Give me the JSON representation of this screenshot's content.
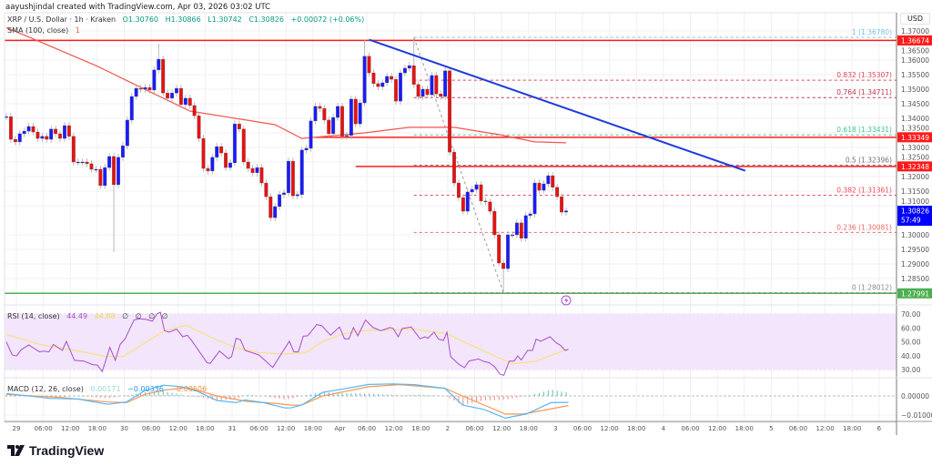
{
  "header": {
    "credit": "aayushjindal created with TradingView.com, Apr 03, 2026 03:02 UTC"
  },
  "legend": {
    "symbol": "XRP / U.S. Dollar · 1h · Kraken",
    "open": "O1.30760",
    "high": "H1.30866",
    "low": "L1.30742",
    "close": "C1.30826",
    "change": "+0.00072 (+0.06%)",
    "sma_label": "SMA (100, close)",
    "sma_value": "1"
  },
  "rsi_legend": {
    "label": "RSI (14, close)",
    "rsi": "44.49",
    "ma": "44.88",
    "extra": [
      "∅",
      "∅",
      "∅",
      "∅"
    ]
  },
  "macd_legend": {
    "label": "MACD (12, 26, close)",
    "hist": "0.00171",
    "macd": "−0.00336",
    "signal": "−0.00506"
  },
  "axis": {
    "currency_button": "USD",
    "price_ticks": [
      "1.37000",
      "1.36500",
      "1.36000",
      "1.35500",
      "1.35000",
      "1.34500",
      "1.34000",
      "1.33500",
      "1.33000",
      "1.32500",
      "1.32000",
      "1.31500",
      "1.31000",
      "1.30000",
      "1.29500",
      "1.29000",
      "1.28500"
    ],
    "rsi_ticks": [
      "70.00",
      "60.00",
      "50.00",
      "40.00",
      "30.00"
    ],
    "macd_ticks": [
      "0.00000",
      "−0.01000"
    ],
    "time_ticks": [
      "29",
      "06:00",
      "12:00",
      "18:00",
      "30",
      "06:00",
      "12:00",
      "18:00",
      "31",
      "06:00",
      "12:00",
      "18:00",
      "Apr",
      "06:00",
      "12:00",
      "18:00",
      "2",
      "06:00",
      "12:00",
      "18:00",
      "3",
      "06:00",
      "12:00",
      "18:00",
      "4",
      "06:00",
      "12:00",
      "18:00",
      "5",
      "06:00",
      "12:00",
      "18:00",
      "6"
    ]
  },
  "price_tags": [
    {
      "text": "1.36674",
      "price": 1.36674,
      "color": "#ff1a1a"
    },
    {
      "text": "1.33349",
      "price": 1.33349,
      "color": "#ff1a1a"
    },
    {
      "text": "1.32348",
      "price": 1.32348,
      "color": "#ff1a1a"
    },
    {
      "text": "1.30826",
      "sub": "57:49",
      "price": 1.30826,
      "color": "#0000ff"
    },
    {
      "text": "1.27991",
      "price": 1.27991,
      "color": "#4caf50"
    }
  ],
  "brand": {
    "name": "TradingView"
  },
  "colors": {
    "up": "#1a1aff",
    "down": "#e81111",
    "sma": "#f2564d",
    "trendline": "#1f3bd8",
    "rsi": "#a64fc8",
    "rsi_ma": "#f7df6b",
    "rsi_band": "#f3e5fc",
    "macd": "#55b8f5",
    "signal": "#fb9852",
    "hist_up": "#26a69a",
    "hist_down": "#ef5350"
  },
  "chart_data": {
    "type": "candlestick",
    "symbol": "XRP/USD",
    "interval": "1h",
    "ylim": [
      1.2775,
      1.372
    ],
    "grid": true,
    "first_open": 1.3406,
    "closes": [
      1.3406,
      1.3328,
      1.3319,
      1.3347,
      1.3356,
      1.3372,
      1.3353,
      1.3331,
      1.3338,
      1.3328,
      1.3363,
      1.3347,
      1.3331,
      1.3375,
      1.3338,
      1.325,
      1.325,
      1.325,
      1.3244,
      1.3225,
      1.3225,
      1.3169,
      1.3231,
      1.3269,
      1.3172,
      1.3266,
      1.3306,
      1.3394,
      1.3475,
      1.3503,
      1.35,
      1.3506,
      1.3497,
      1.3566,
      1.3603,
      1.3487,
      1.3469,
      1.3487,
      1.3503,
      1.3447,
      1.3469,
      1.3444,
      1.3409,
      1.3331,
      1.3228,
      1.3219,
      1.3266,
      1.3303,
      1.3281,
      1.3231,
      1.3247,
      1.3381,
      1.3363,
      1.325,
      1.3228,
      1.3213,
      1.3231,
      1.3178,
      1.3131,
      1.3059,
      1.3097,
      1.3138,
      1.3144,
      1.3253,
      1.3134,
      1.3138,
      1.3291,
      1.3297,
      1.3391,
      1.3441,
      1.3434,
      1.3394,
      1.3347,
      1.3403,
      1.3441,
      1.3338,
      1.3341,
      1.3466,
      1.3381,
      1.3453,
      1.3613,
      1.3556,
      1.3519,
      1.3509,
      1.3522,
      1.3544,
      1.3534,
      1.3459,
      1.3556,
      1.3572,
      1.3581,
      1.3516,
      1.3475,
      1.35,
      1.3481,
      1.3547,
      1.3484,
      1.3475,
      1.3563,
      1.3284,
      1.3178,
      1.3128,
      1.3081,
      1.3147,
      1.3156,
      1.3172,
      1.3116,
      1.3113,
      1.3081,
      1.3,
      1.2903,
      1.2884,
      1.3,
      1.3,
      1.3041,
      1.2988,
      1.3066,
      1.3072,
      1.3178,
      1.3153,
      1.3175,
      1.3203,
      1.3163,
      1.3131,
      1.3078,
      1.30826
    ],
    "wick_extremes": [
      {
        "index": 24,
        "low": 1.2941
      },
      {
        "index": 34,
        "high": 1.3656
      },
      {
        "index": 80,
        "high": 1.3669
      },
      {
        "index": 91,
        "high": 1.3678
      },
      {
        "index": 111,
        "low": 1.28012
      }
    ],
    "sma100": [
      [
        0,
        1.3712
      ],
      [
        20,
        1.3581
      ],
      [
        41,
        1.3425
      ],
      [
        60,
        1.3378
      ],
      [
        66,
        1.3331
      ],
      [
        80,
        1.335
      ],
      [
        90,
        1.3369
      ],
      [
        100,
        1.3369
      ],
      [
        110,
        1.3344
      ],
      [
        118,
        1.3319
      ],
      [
        125,
        1.3316
      ]
    ],
    "horizontal_levels": [
      {
        "price": 1.36674,
        "color": "#ff1a1a",
        "from_index": -1
      },
      {
        "price": 1.33349,
        "color": "#ff1a1a",
        "from_index": 69
      },
      {
        "price": 1.32348,
        "color": "#ff1a1a",
        "from_index": 78
      },
      {
        "price": 1.27991,
        "color": "#4caf50",
        "from_index": -1
      }
    ],
    "trendline": {
      "from": [
        81,
        1.367
      ],
      "to": [
        165,
        1.322
      ]
    },
    "fibonacci": {
      "from_index": 91,
      "to_index": 111,
      "levels": [
        {
          "ratio": "1",
          "price": 1.3678,
          "label": "1 (1.36780)",
          "color": "#7ec3e6"
        },
        {
          "ratio": "0.832",
          "price": 1.35307,
          "label": "0.832 (1.35307)",
          "color": "#e0455d"
        },
        {
          "ratio": "0.764",
          "price": 1.34711,
          "label": "0.764 (1.34711)",
          "color": "#c2364d"
        },
        {
          "ratio": "0.618",
          "price": 1.33431,
          "label": "0.618 (1.33431)",
          "color": "#3dc98f"
        },
        {
          "ratio": "0.5",
          "price": 1.32396,
          "label": "0.5 (1.32396)",
          "color": "#7d6b7d"
        },
        {
          "ratio": "0.382",
          "price": 1.31361,
          "label": "0.382 (1.31361)",
          "color": "#ef4b5f"
        },
        {
          "ratio": "0.236",
          "price": 1.30081,
          "label": "0.236 (1.30081)",
          "color": "#e66a6a"
        },
        {
          "ratio": "0",
          "price": 1.28012,
          "label": "0 (1.28012)",
          "color": "#8a8a8a"
        }
      ]
    },
    "rsi": {
      "ylim": [
        30,
        70
      ],
      "values": [
        [
          0,
          49.9
        ],
        [
          1.3,
          40.5
        ],
        [
          2.3,
          39.8
        ],
        [
          3.3,
          44.2
        ],
        [
          5,
          47.7
        ],
        [
          7.4,
          42.7
        ],
        [
          8.4,
          43.3
        ],
        [
          9.5,
          42.7
        ],
        [
          10.5,
          48.1
        ],
        [
          12.5,
          43.8
        ],
        [
          13.4,
          50.3
        ],
        [
          15.2,
          36.6
        ],
        [
          17.3,
          36.1
        ],
        [
          19.3,
          33.5
        ],
        [
          20.3,
          33.3
        ],
        [
          21.4,
          28.5
        ],
        [
          23.1,
          46
        ],
        [
          24.3,
          36.6
        ],
        [
          25.4,
          48.1
        ],
        [
          26.5,
          52.1
        ],
        [
          28.5,
          65.6
        ],
        [
          29.5,
          66.5
        ],
        [
          31.2,
          66.1
        ],
        [
          32.6,
          64.8
        ],
        [
          33.6,
          70
        ],
        [
          34.4,
          71.3
        ],
        [
          35.3,
          58
        ],
        [
          36.3,
          56.9
        ],
        [
          38,
          59.1
        ],
        [
          39.4,
          53.6
        ],
        [
          40.4,
          54.7
        ],
        [
          41.4,
          50.8
        ],
        [
          44.8,
          35
        ],
        [
          45.5,
          34.4
        ],
        [
          47.6,
          43.3
        ],
        [
          49.6,
          37.9
        ],
        [
          50.3,
          39.4
        ],
        [
          51.3,
          52.5
        ],
        [
          52.3,
          51.4
        ],
        [
          53.3,
          43.8
        ],
        [
          56.4,
          40.5
        ],
        [
          59.5,
          31.5
        ],
        [
          61.1,
          39.8
        ],
        [
          63.2,
          50.3
        ],
        [
          64.2,
          42.7
        ],
        [
          65.2,
          42.7
        ],
        [
          66.3,
          54
        ],
        [
          67.3,
          54.3
        ],
        [
          69.3,
          62.4
        ],
        [
          70.4,
          61.7
        ],
        [
          72.4,
          54.7
        ],
        [
          74.4,
          60.6
        ],
        [
          75.5,
          52.1
        ],
        [
          76.5,
          52.1
        ],
        [
          77.5,
          60.2
        ],
        [
          78.5,
          54.3
        ],
        [
          80.2,
          65.6
        ],
        [
          81.9,
          60.2
        ],
        [
          83.6,
          58
        ],
        [
          85.7,
          60.2
        ],
        [
          86.4,
          59.5
        ],
        [
          87.5,
          53.6
        ],
        [
          88.4,
          59.5
        ],
        [
          90.4,
          60.6
        ],
        [
          92.4,
          52.1
        ],
        [
          93.5,
          53.6
        ],
        [
          94.1,
          52.5
        ],
        [
          95.5,
          56.9
        ],
        [
          96.5,
          51.9
        ],
        [
          97.6,
          51
        ],
        [
          98.4,
          56.9
        ],
        [
          99.2,
          39.4
        ],
        [
          101,
          33.9
        ],
        [
          102.3,
          31.3
        ],
        [
          103.3,
          36.1
        ],
        [
          105.4,
          37.6
        ],
        [
          106.7,
          35.7
        ],
        [
          107.8,
          35
        ],
        [
          109.1,
          31.7
        ],
        [
          110.2,
          26.7
        ],
        [
          111.1,
          25.8
        ],
        [
          112.3,
          36.1
        ],
        [
          113.4,
          36.1
        ],
        [
          114.2,
          39.8
        ],
        [
          115,
          36.8
        ],
        [
          116.4,
          43.8
        ],
        [
          117.5,
          43.8
        ],
        [
          118.3,
          51.9
        ],
        [
          119.3,
          50.3
        ],
        [
          121.4,
          53.6
        ],
        [
          122.8,
          49.2
        ],
        [
          123.7,
          47.5
        ],
        [
          124.8,
          43.8
        ],
        [
          125.5,
          44.49
        ]
      ],
      "ma": [
        [
          0,
          55.4
        ],
        [
          7.4,
          48.1
        ],
        [
          15.2,
          43.8
        ],
        [
          22.4,
          39.4
        ],
        [
          26,
          39.4
        ],
        [
          28.5,
          44.2
        ],
        [
          35.3,
          58
        ],
        [
          40.1,
          61.9
        ],
        [
          46.2,
          52.5
        ],
        [
          51,
          46
        ],
        [
          56.4,
          42.2
        ],
        [
          62.2,
          41.1
        ],
        [
          63.9,
          41.6
        ],
        [
          66.7,
          42
        ],
        [
          70.8,
          50.3
        ],
        [
          74.9,
          55.4
        ],
        [
          79.6,
          58
        ],
        [
          84.4,
          58.4
        ],
        [
          91.2,
          59.1
        ],
        [
          98.4,
          55.8
        ],
        [
          104.8,
          46
        ],
        [
          113,
          34
        ],
        [
          118.3,
          36.1
        ],
        [
          125.5,
          44.88
        ]
      ]
    },
    "macd": {
      "ylim": [
        -0.013,
        0.0085
      ],
      "macd": [
        [
          0,
          0.0013
        ],
        [
          9.7,
          -0.0013
        ],
        [
          15.9,
          -0.0016
        ],
        [
          22.7,
          -0.0044
        ],
        [
          26.8,
          -0.0032
        ],
        [
          30.9,
          0.0027
        ],
        [
          35,
          0.0056
        ],
        [
          39,
          0.0048
        ],
        [
          42.4,
          0.0027
        ],
        [
          47,
          -0.0024
        ],
        [
          51.3,
          -0.0035
        ],
        [
          53.3,
          -0.0021
        ],
        [
          57.4,
          -0.0035
        ],
        [
          62.2,
          -0.0063
        ],
        [
          63.5,
          -0.0063
        ],
        [
          65.9,
          -0.0048
        ],
        [
          70.7,
          0.0019
        ],
        [
          74.1,
          0.0032
        ],
        [
          80.9,
          0.006
        ],
        [
          86.4,
          0.0063
        ],
        [
          91.1,
          0.0059
        ],
        [
          97.9,
          0.004
        ],
        [
          101.9,
          -0.0048
        ],
        [
          106.7,
          -0.0071
        ],
        [
          111.4,
          -0.0116
        ],
        [
          116.1,
          -0.0095
        ],
        [
          121.6,
          -0.0035
        ],
        [
          125.5,
          -0.00336
        ]
      ],
      "signal": [
        [
          0,
          0.0008
        ],
        [
          12.2,
          -0.0008
        ],
        [
          22.7,
          -0.0032
        ],
        [
          26.8,
          -0.0035
        ],
        [
          30.9,
          0.0008
        ],
        [
          35.7,
          0.0032
        ],
        [
          40.4,
          0.0044
        ],
        [
          47,
          0
        ],
        [
          53.8,
          -0.0029
        ],
        [
          60.5,
          -0.004
        ],
        [
          63.5,
          -0.0048
        ],
        [
          65.9,
          -0.0048
        ],
        [
          70.7,
          0
        ],
        [
          80.9,
          0.0048
        ],
        [
          87.8,
          0.0059
        ],
        [
          97.9,
          0.004
        ],
        [
          101.9,
          0
        ],
        [
          111.4,
          -0.0095
        ],
        [
          115.5,
          -0.0095
        ],
        [
          125.5,
          -0.00506
        ]
      ]
    }
  }
}
